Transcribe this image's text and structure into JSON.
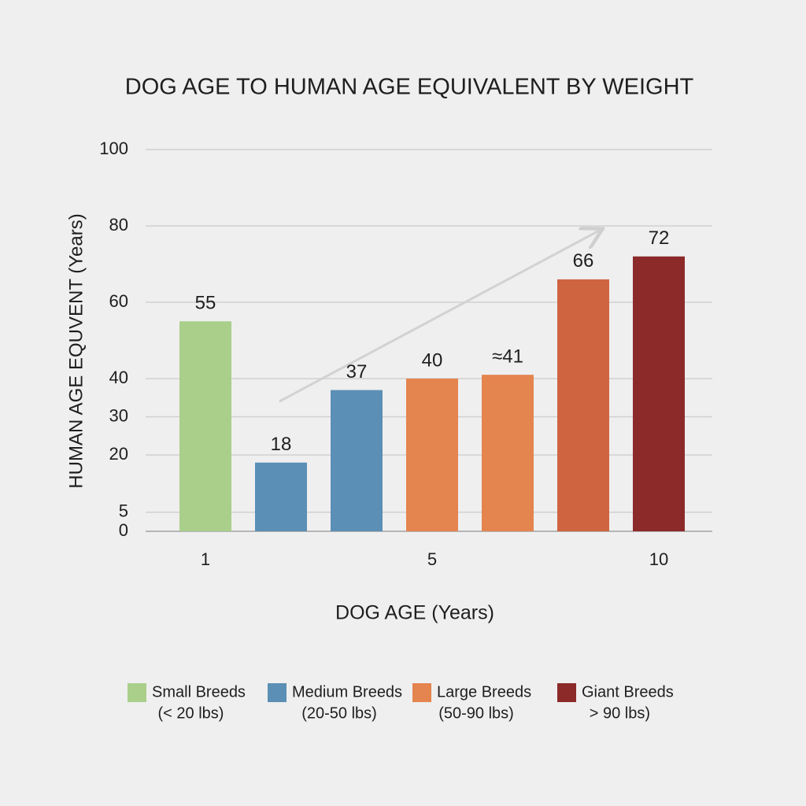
{
  "chart_data": {
    "type": "bar",
    "title": "DOG AGE TO HUMAN AGE EQUIVALENT BY WEIGHT",
    "x_label": "DOG AGE (Years)",
    "y_label": "HUMAN AGE EQUVENT (Years)",
    "categories": [
      "1",
      null,
      null,
      "5",
      null,
      null,
      "10"
    ],
    "values": [
      55,
      18,
      37,
      40,
      41,
      66,
      72
    ],
    "value_labels": [
      "55",
      "18",
      "37",
      "40",
      "≈41",
      "66",
      "72"
    ],
    "colors": [
      "#a9cf8a",
      "#5b8fb5",
      "#5b8fb5",
      "#e4844e",
      "#e4844e",
      "#cf6440",
      "#8c2a2a"
    ],
    "ylim": [
      0,
      100
    ],
    "yticks": [
      0,
      5,
      20,
      30,
      40,
      60,
      80,
      100
    ],
    "grid": true,
    "legend": [
      {
        "label": "Small Breeds",
        "sublabel": "(< 20 lbs)",
        "color": "#a9cf8a"
      },
      {
        "label": "Medium Breeds",
        "sublabel": "(20-50 lbs)",
        "color": "#5b8fb5"
      },
      {
        "label": "Large Breeds",
        "sublabel": "(50-90 lbs)",
        "color": "#e4844e"
      },
      {
        "label": "Giant Breeds",
        "sublabel": "> 90 lbs)",
        "color": "#8c2a2a"
      }
    ]
  }
}
